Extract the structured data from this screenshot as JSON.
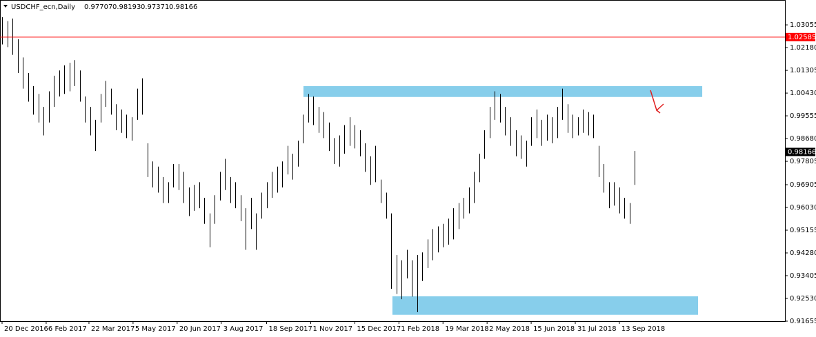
{
  "chart_data": {
    "type": "range-bar",
    "title": "USDCHF_ecn,Daily",
    "quote": [
      0.97707,
      0.98193,
      0.97371,
      0.98166
    ],
    "color": "#000000",
    "x": [
      0,
      4,
      8,
      12,
      16,
      20,
      24,
      28,
      32,
      36,
      40,
      44,
      48,
      52,
      56,
      60,
      64,
      68,
      72,
      76,
      80,
      84,
      88,
      92,
      96,
      100,
      104,
      108,
      112,
      116,
      120,
      124,
      128,
      132,
      136,
      140,
      144,
      148,
      152,
      156,
      160,
      164,
      168,
      172,
      176,
      180,
      184,
      188,
      192,
      196,
      200,
      204,
      208,
      212,
      216,
      220,
      224,
      228,
      232,
      236,
      240,
      244,
      248,
      252,
      256,
      260,
      264,
      268,
      272,
      276,
      280,
      284,
      288,
      292,
      296,
      300,
      304,
      308,
      312,
      316,
      320,
      324,
      328,
      332,
      336,
      340,
      344,
      348,
      352,
      356,
      360,
      364,
      368,
      372,
      376,
      380,
      384,
      388,
      392,
      396,
      400,
      404,
      408,
      412,
      416,
      420,
      424,
      428,
      432,
      436,
      440,
      444,
      448,
      452,
      456,
      460,
      464,
      468,
      472,
      476,
      480,
      484,
      488
    ],
    "high": [
      1.0335,
      1.032,
      1.033,
      1.025,
      1.018,
      1.012,
      1.007,
      1.004,
      0.999,
      1.005,
      1.011,
      1.013,
      1.015,
      1.016,
      1.017,
      1.013,
      1.003,
      0.999,
      0.994,
      1.004,
      1.009,
      1.006,
      1.0,
      0.998,
      0.996,
      0.995,
      1.006,
      1.01,
      0.985,
      0.978,
      0.976,
      0.972,
      0.97,
      0.977,
      0.977,
      0.974,
      0.968,
      0.969,
      0.97,
      0.964,
      0.958,
      0.965,
      0.974,
      0.979,
      0.972,
      0.97,
      0.965,
      0.96,
      0.964,
      0.958,
      0.966,
      0.97,
      0.974,
      0.976,
      0.978,
      0.984,
      0.981,
      0.986,
      0.996,
      1.004,
      1.003,
      0.999,
      0.997,
      0.993,
      0.987,
      0.988,
      0.992,
      0.995,
      0.992,
      0.99,
      0.985,
      0.98,
      0.984,
      0.971,
      0.966,
      0.958,
      0.942,
      0.94,
      0.944,
      0.94,
      0.942,
      0.943,
      0.948,
      0.952,
      0.953,
      0.954,
      0.956,
      0.96,
      0.962,
      0.964,
      0.968,
      0.974,
      0.981,
      0.99,
      0.999,
      1.005,
      1.004,
      0.999,
      0.995,
      0.99,
      0.988,
      0.986,
      0.995,
      0.998,
      0.994,
      0.996,
      0.995,
      0.999,
      1.006,
      1.0,
      0.996,
      0.995,
      0.998,
      0.997,
      0.996,
      0.984,
      0.977,
      0.97,
      0.97,
      0.968,
      0.964,
      0.962,
      0.982
    ],
    "low": [
      1.023,
      1.022,
      1.019,
      1.012,
      1.006,
      1.001,
      0.996,
      0.993,
      0.988,
      0.993,
      0.999,
      1.003,
      1.004,
      1.005,
      1.007,
      1.001,
      0.993,
      0.988,
      0.982,
      0.993,
      0.999,
      0.996,
      0.99,
      0.989,
      0.987,
      0.986,
      0.994,
      0.996,
      0.972,
      0.968,
      0.966,
      0.962,
      0.962,
      0.968,
      0.967,
      0.962,
      0.957,
      0.959,
      0.96,
      0.954,
      0.945,
      0.954,
      0.963,
      0.967,
      0.962,
      0.96,
      0.955,
      0.944,
      0.952,
      0.944,
      0.956,
      0.96,
      0.964,
      0.966,
      0.968,
      0.973,
      0.971,
      0.976,
      0.985,
      0.993,
      0.992,
      0.989,
      0.987,
      0.982,
      0.977,
      0.976,
      0.981,
      0.984,
      0.983,
      0.98,
      0.974,
      0.969,
      0.97,
      0.962,
      0.956,
      0.929,
      0.927,
      0.925,
      0.933,
      0.926,
      0.92,
      0.932,
      0.937,
      0.94,
      0.943,
      0.945,
      0.946,
      0.948,
      0.952,
      0.956,
      0.958,
      0.962,
      0.97,
      0.979,
      0.987,
      0.994,
      0.993,
      0.988,
      0.984,
      0.98,
      0.979,
      0.976,
      0.984,
      0.987,
      0.984,
      0.986,
      0.985,
      0.987,
      0.994,
      0.989,
      0.987,
      0.988,
      0.989,
      0.988,
      0.987,
      0.972,
      0.966,
      0.96,
      0.961,
      0.958,
      0.956,
      0.954,
      0.969
    ],
    "xlim": [
      -1.6,
      603.7
    ],
    "xticks": [
      {
        "value": 0,
        "label": "20 Dec 2016"
      },
      {
        "value": 34,
        "label": "6 Feb 2017"
      },
      {
        "value": 67,
        "label": "22 Mar 2017"
      },
      {
        "value": 101,
        "label": "5 May 2017"
      },
      {
        "value": 135,
        "label": "20 Jun 2017"
      },
      {
        "value": 169,
        "label": "3 Aug 2017"
      },
      {
        "value": 204,
        "label": "18 Sep 2017"
      },
      {
        "value": 238,
        "label": "1 Nov 2017"
      },
      {
        "value": 272,
        "label": "15 Dec 2017"
      },
      {
        "value": 306,
        "label": "1 Feb 2018"
      },
      {
        "value": 340,
        "label": "19 Mar 2018"
      },
      {
        "value": 374,
        "label": "2 May 2018"
      },
      {
        "value": 408,
        "label": "15 Jun 2018"
      },
      {
        "value": 442,
        "label": "31 Jul 2018"
      },
      {
        "value": 476,
        "label": "13 Sep 2018"
      }
    ],
    "ylim": [
      0.91655,
      1.04012
    ],
    "yticks": [
      1.03055,
      {
        "value": 1.0218,
        "label": "1.02180"
      },
      1.01305,
      {
        "value": 1.0043,
        "label": "1.00430"
      },
      0.99555,
      {
        "value": 0.9868,
        "label": "0.98680"
      },
      0.97805,
      0.96905,
      {
        "value": 0.9603,
        "label": "0.96030"
      },
      0.95155,
      {
        "value": 0.9428,
        "label": "0.94280"
      },
      0.93405,
      {
        "value": 0.9253,
        "label": "0.92530"
      },
      0.91655
    ],
    "level_line": {
      "value": 1.02585,
      "color": "#ff0000"
    },
    "current_price": {
      "value": 0.98166,
      "color": "#000000"
    },
    "zones": [
      {
        "xlim": [
          232.4,
          539.9
        ],
        "ylim": [
          1.0028,
          1.007
        ],
        "color": "#87ceeb"
      },
      {
        "xlim": [
          301,
          536.7
        ],
        "ylim": [
          0.919,
          0.9261
        ],
        "color": "#87ceeb"
      }
    ]
  }
}
